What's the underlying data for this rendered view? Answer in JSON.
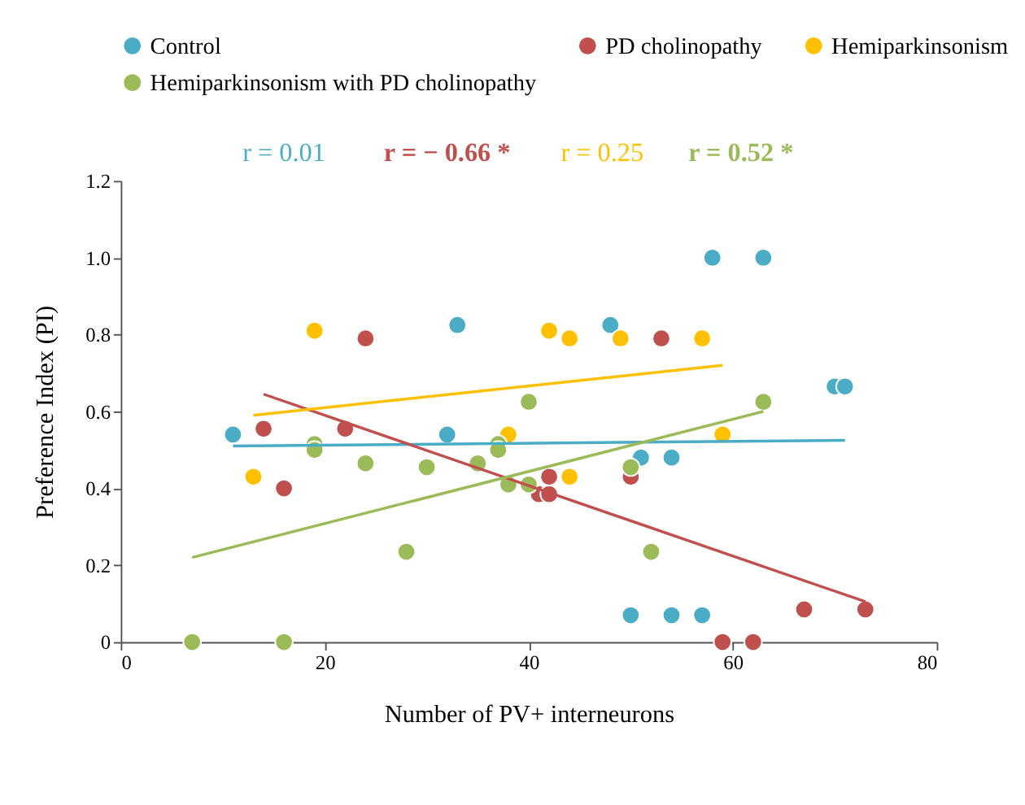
{
  "chart_data": {
    "type": "scatter",
    "xlabel": "Number of PV+ interneurons",
    "ylabel": "Preference Index (PI)",
    "xlim": [
      0,
      80
    ],
    "xticks": [
      0,
      20,
      40,
      60,
      80
    ],
    "ylim": [
      0,
      1.2
    ],
    "yticks": [
      0,
      0.2,
      0.4,
      0.6,
      0.8,
      {
        "value": 1.0,
        "label": "1.0"
      },
      1.2
    ],
    "grid": false,
    "legend": "top",
    "marker": "circle",
    "annotations": [
      "r = 0.01",
      "r =  − 0.66 *",
      "r = 0.25",
      "r = 0.52 *"
    ],
    "series": [
      {
        "name": "Control",
        "color": "#4bacc6",
        "x": [
          11,
          32,
          33,
          48,
          50,
          51,
          54,
          54,
          57,
          58,
          63,
          70,
          71
        ],
        "values": [
          0.54,
          0.54,
          0.825,
          0.825,
          0.07,
          0.48,
          0.48,
          0.07,
          0.07,
          1.0,
          1.0,
          0.665,
          0.665
        ]
      },
      {
        "name": "PD cholinopathy",
        "color": "#c0504d",
        "x": [
          14,
          16,
          22,
          24,
          41,
          42,
          42,
          50,
          53,
          59,
          62,
          67,
          73
        ],
        "values": [
          0.555,
          0.4,
          0.555,
          0.79,
          0.385,
          0.385,
          0.43,
          0.43,
          0.79,
          0,
          0,
          0.085,
          0.085
        ]
      },
      {
        "name": "Hemiparkinsonism",
        "color": "#ffc000",
        "x": [
          13,
          19,
          38,
          42,
          44,
          44,
          49,
          57,
          59
        ],
        "values": [
          0.43,
          0.81,
          0.54,
          0.81,
          0.79,
          0.43,
          0.79,
          0.79,
          0.54
        ]
      },
      {
        "name": "Hemiparkinsonism with PD cholinopathy",
        "color": "#9bbb59",
        "x": [
          7,
          16,
          19,
          19,
          24,
          28,
          30,
          35,
          37,
          37,
          38,
          40,
          40,
          50,
          52,
          63
        ],
        "values": [
          0,
          0,
          0.515,
          0.5,
          0.465,
          0.235,
          0.455,
          0.465,
          0.515,
          0.5,
          0.41,
          0.625,
          0.41,
          0.455,
          0.235,
          0.625
        ]
      },
      {
        "type": "line",
        "marker": "none",
        "color": "#4bacc6",
        "x": [
          11,
          71
        ],
        "values": [
          0.51,
          0.525
        ]
      },
      {
        "type": "line",
        "marker": "none",
        "color": "#c0504d",
        "x": [
          14,
          73
        ],
        "values": [
          0.645,
          0.105
        ]
      },
      {
        "type": "line",
        "marker": "none",
        "color": "#ffc000",
        "x": [
          13,
          59
        ],
        "values": [
          0.59,
          0.72
        ]
      },
      {
        "type": "line",
        "marker": "none",
        "color": "#9bbb59",
        "x": [
          7,
          63
        ],
        "values": [
          0.22,
          0.6
        ]
      }
    ]
  }
}
